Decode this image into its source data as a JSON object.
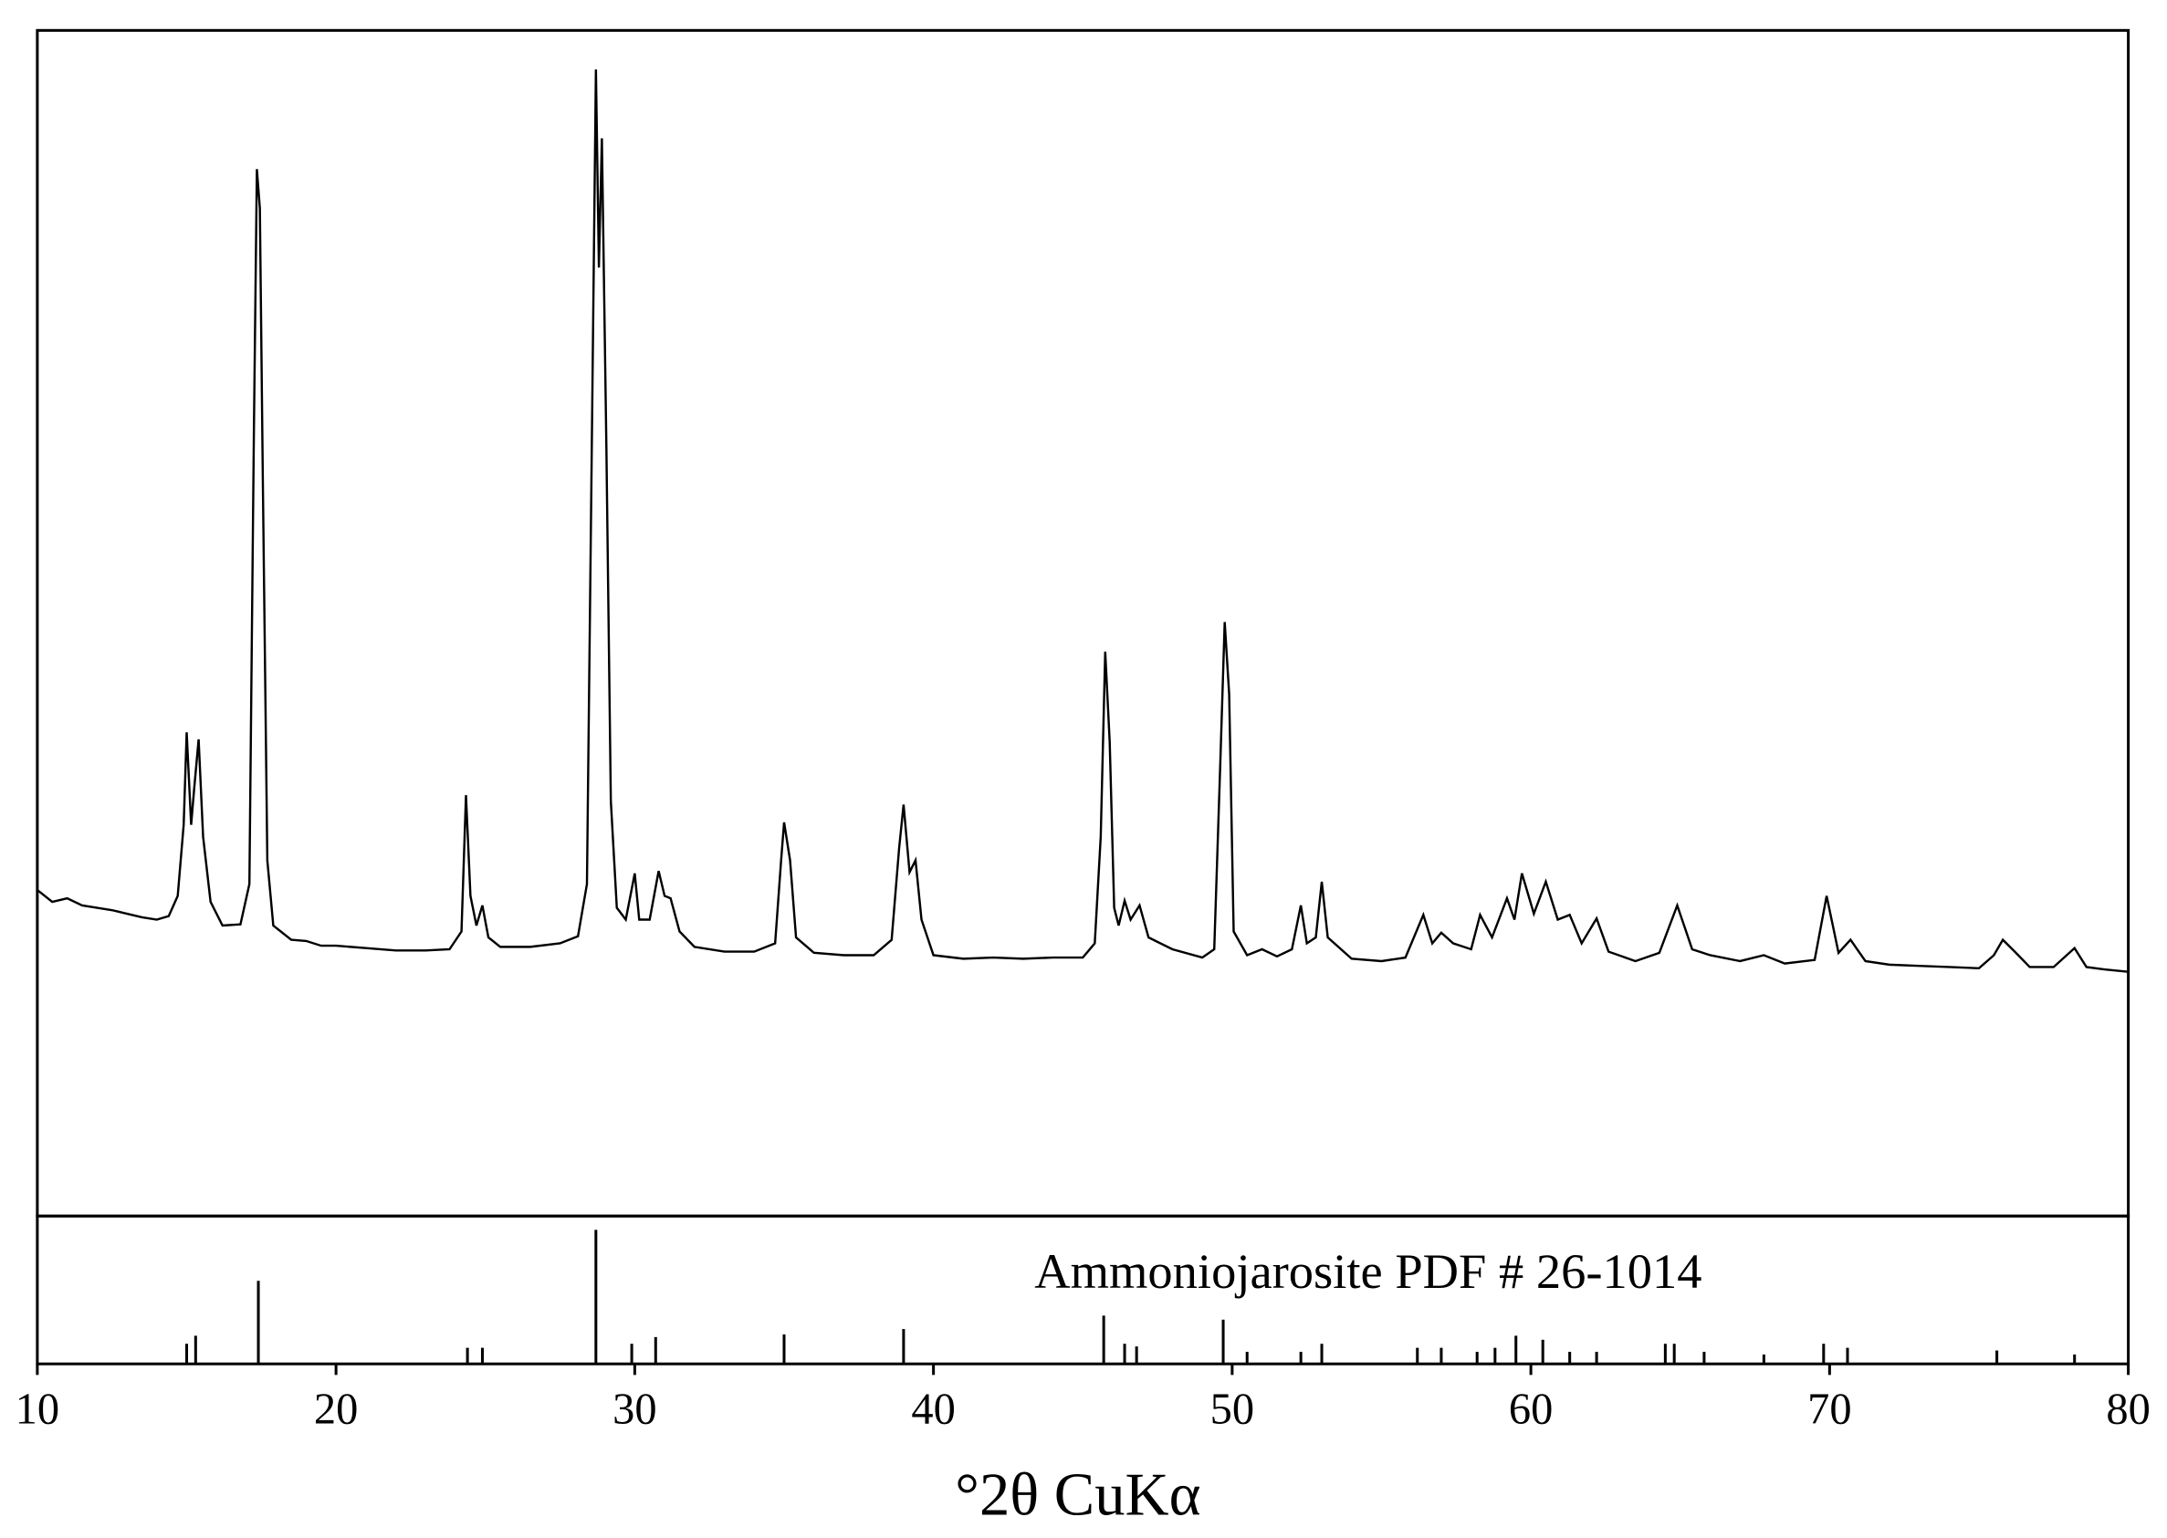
{
  "chart_data": [
    {
      "type": "line",
      "color": "#000000",
      "xlim": [
        10,
        80
      ],
      "ylim": [
        0,
        100
      ],
      "x": [
        10.0,
        10.5,
        11,
        11.5,
        12,
        12.5,
        13,
        13.5,
        14,
        14.4,
        14.7,
        14.9,
        15.0,
        15.15,
        15.25,
        15.4,
        15.55,
        15.8,
        16.2,
        16.8,
        17.1,
        17.25,
        17.35,
        17.45,
        17.55,
        17.7,
        17.9,
        18.5,
        19,
        19.5,
        20,
        21,
        22,
        23,
        23.8,
        24.2,
        24.35,
        24.5,
        24.7,
        24.9,
        25.1,
        25.5,
        26.5,
        27.5,
        28.1,
        28.4,
        28.55,
        28.7,
        28.8,
        28.9,
        29.05,
        29.2,
        29.4,
        29.7,
        30.0,
        30.15,
        30.5,
        30.8,
        31.0,
        31.2,
        31.5,
        32,
        33,
        34,
        34.7,
        34.9,
        35.0,
        35.2,
        35.4,
        36,
        37,
        38,
        38.6,
        38.85,
        39.0,
        39.2,
        39.4,
        39.6,
        40,
        41,
        42,
        43,
        44,
        45,
        45.4,
        45.6,
        45.75,
        45.9,
        46.05,
        46.2,
        46.4,
        46.6,
        46.9,
        47.2,
        48,
        49,
        49.4,
        49.6,
        49.75,
        49.9,
        50.05,
        50.5,
        51,
        51.5,
        52,
        52.3,
        52.5,
        52.8,
        53.0,
        53.2,
        54,
        55,
        55.8,
        56.4,
        56.7,
        57.0,
        57.4,
        58,
        58.3,
        58.7,
        59.2,
        59.45,
        59.7,
        60.1,
        60.5,
        60.9,
        61.3,
        61.7,
        62.2,
        62.6,
        63.5,
        64.3,
        64.9,
        65.4,
        66,
        67,
        67.8,
        68.5,
        69.5,
        69.9,
        70.3,
        70.7,
        71.2,
        72,
        73,
        74,
        75,
        75.5,
        75.8,
        76.2,
        76.7,
        77.5,
        78.2,
        78.6,
        79.2,
        80
      ],
      "values": [
        27.5,
        26.5,
        26.8,
        26.2,
        26,
        25.8,
        25.5,
        25.2,
        25,
        25.3,
        27,
        33,
        40.8,
        33,
        36,
        40.2,
        32,
        26.5,
        24.5,
        24.6,
        28,
        66,
        88.3,
        85,
        62,
        30,
        24.5,
        23.3,
        23.2,
        22.8,
        22.8,
        22.6,
        22.4,
        22.4,
        22.5,
        24,
        35.5,
        27,
        24.5,
        26.2,
        23.5,
        22.7,
        22.7,
        23,
        23.6,
        28,
        62,
        96.7,
        80,
        90.9,
        65,
        35,
        26,
        25,
        28.9,
        25,
        25,
        29.1,
        27,
        26.8,
        24,
        22.7,
        22.3,
        22.3,
        23,
        30,
        33.2,
        30,
        23.5,
        22.2,
        22,
        22,
        23.3,
        31,
        34.7,
        29,
        30,
        25,
        22,
        21.7,
        21.8,
        21.7,
        21.8,
        21.8,
        23,
        32,
        47.6,
        40,
        26,
        24.5,
        26.6,
        25,
        26.2,
        23.5,
        22.5,
        21.8,
        22.5,
        38,
        50.1,
        44,
        24,
        22,
        22.5,
        21.9,
        22.5,
        26.2,
        23,
        23.5,
        28.2,
        23.5,
        21.7,
        21.5,
        21.8,
        25.4,
        23,
        23.9,
        23,
        22.5,
        25.4,
        23.5,
        26.8,
        25,
        28.9,
        25.5,
        28.2,
        25,
        25.4,
        23,
        25.1,
        22.3,
        21.5,
        22.2,
        26.2,
        22.5,
        22,
        21.5,
        22,
        21.3,
        21.6,
        27,
        22.2,
        23.3,
        21.5,
        21.2,
        21.1,
        21,
        20.9,
        22,
        23.3,
        22.3,
        21,
        21,
        22.6,
        21,
        20.8,
        20.6
      ]
    },
    {
      "type": "stick",
      "color": "#000000",
      "annotation": "Ammoniojarosite PDF # 26-1014",
      "x_label": "°2θ  CuKα",
      "xlim": [
        10,
        80
      ],
      "ylim": [
        0,
        100
      ],
      "xticks": [
        10,
        20,
        30,
        40,
        50,
        60,
        70,
        80
      ],
      "x": [
        15.0,
        15.3,
        17.4,
        24.4,
        24.9,
        28.7,
        29.9,
        30.7,
        35.0,
        39.0,
        45.7,
        46.4,
        46.8,
        49.7,
        50.5,
        52.3,
        53.0,
        56.2,
        57.0,
        58.2,
        58.8,
        59.5,
        60.4,
        61.3,
        62.2,
        64.5,
        64.8,
        65.8,
        67.8,
        69.8,
        70.6,
        75.6,
        78.2
      ],
      "values": [
        15,
        21,
        62,
        12,
        12,
        100,
        15,
        20,
        22,
        26,
        36,
        15,
        13,
        33,
        9,
        9,
        15,
        12,
        12,
        9,
        12,
        21,
        18,
        9,
        9,
        15,
        15,
        9,
        7,
        15,
        12,
        10,
        7
      ]
    }
  ]
}
